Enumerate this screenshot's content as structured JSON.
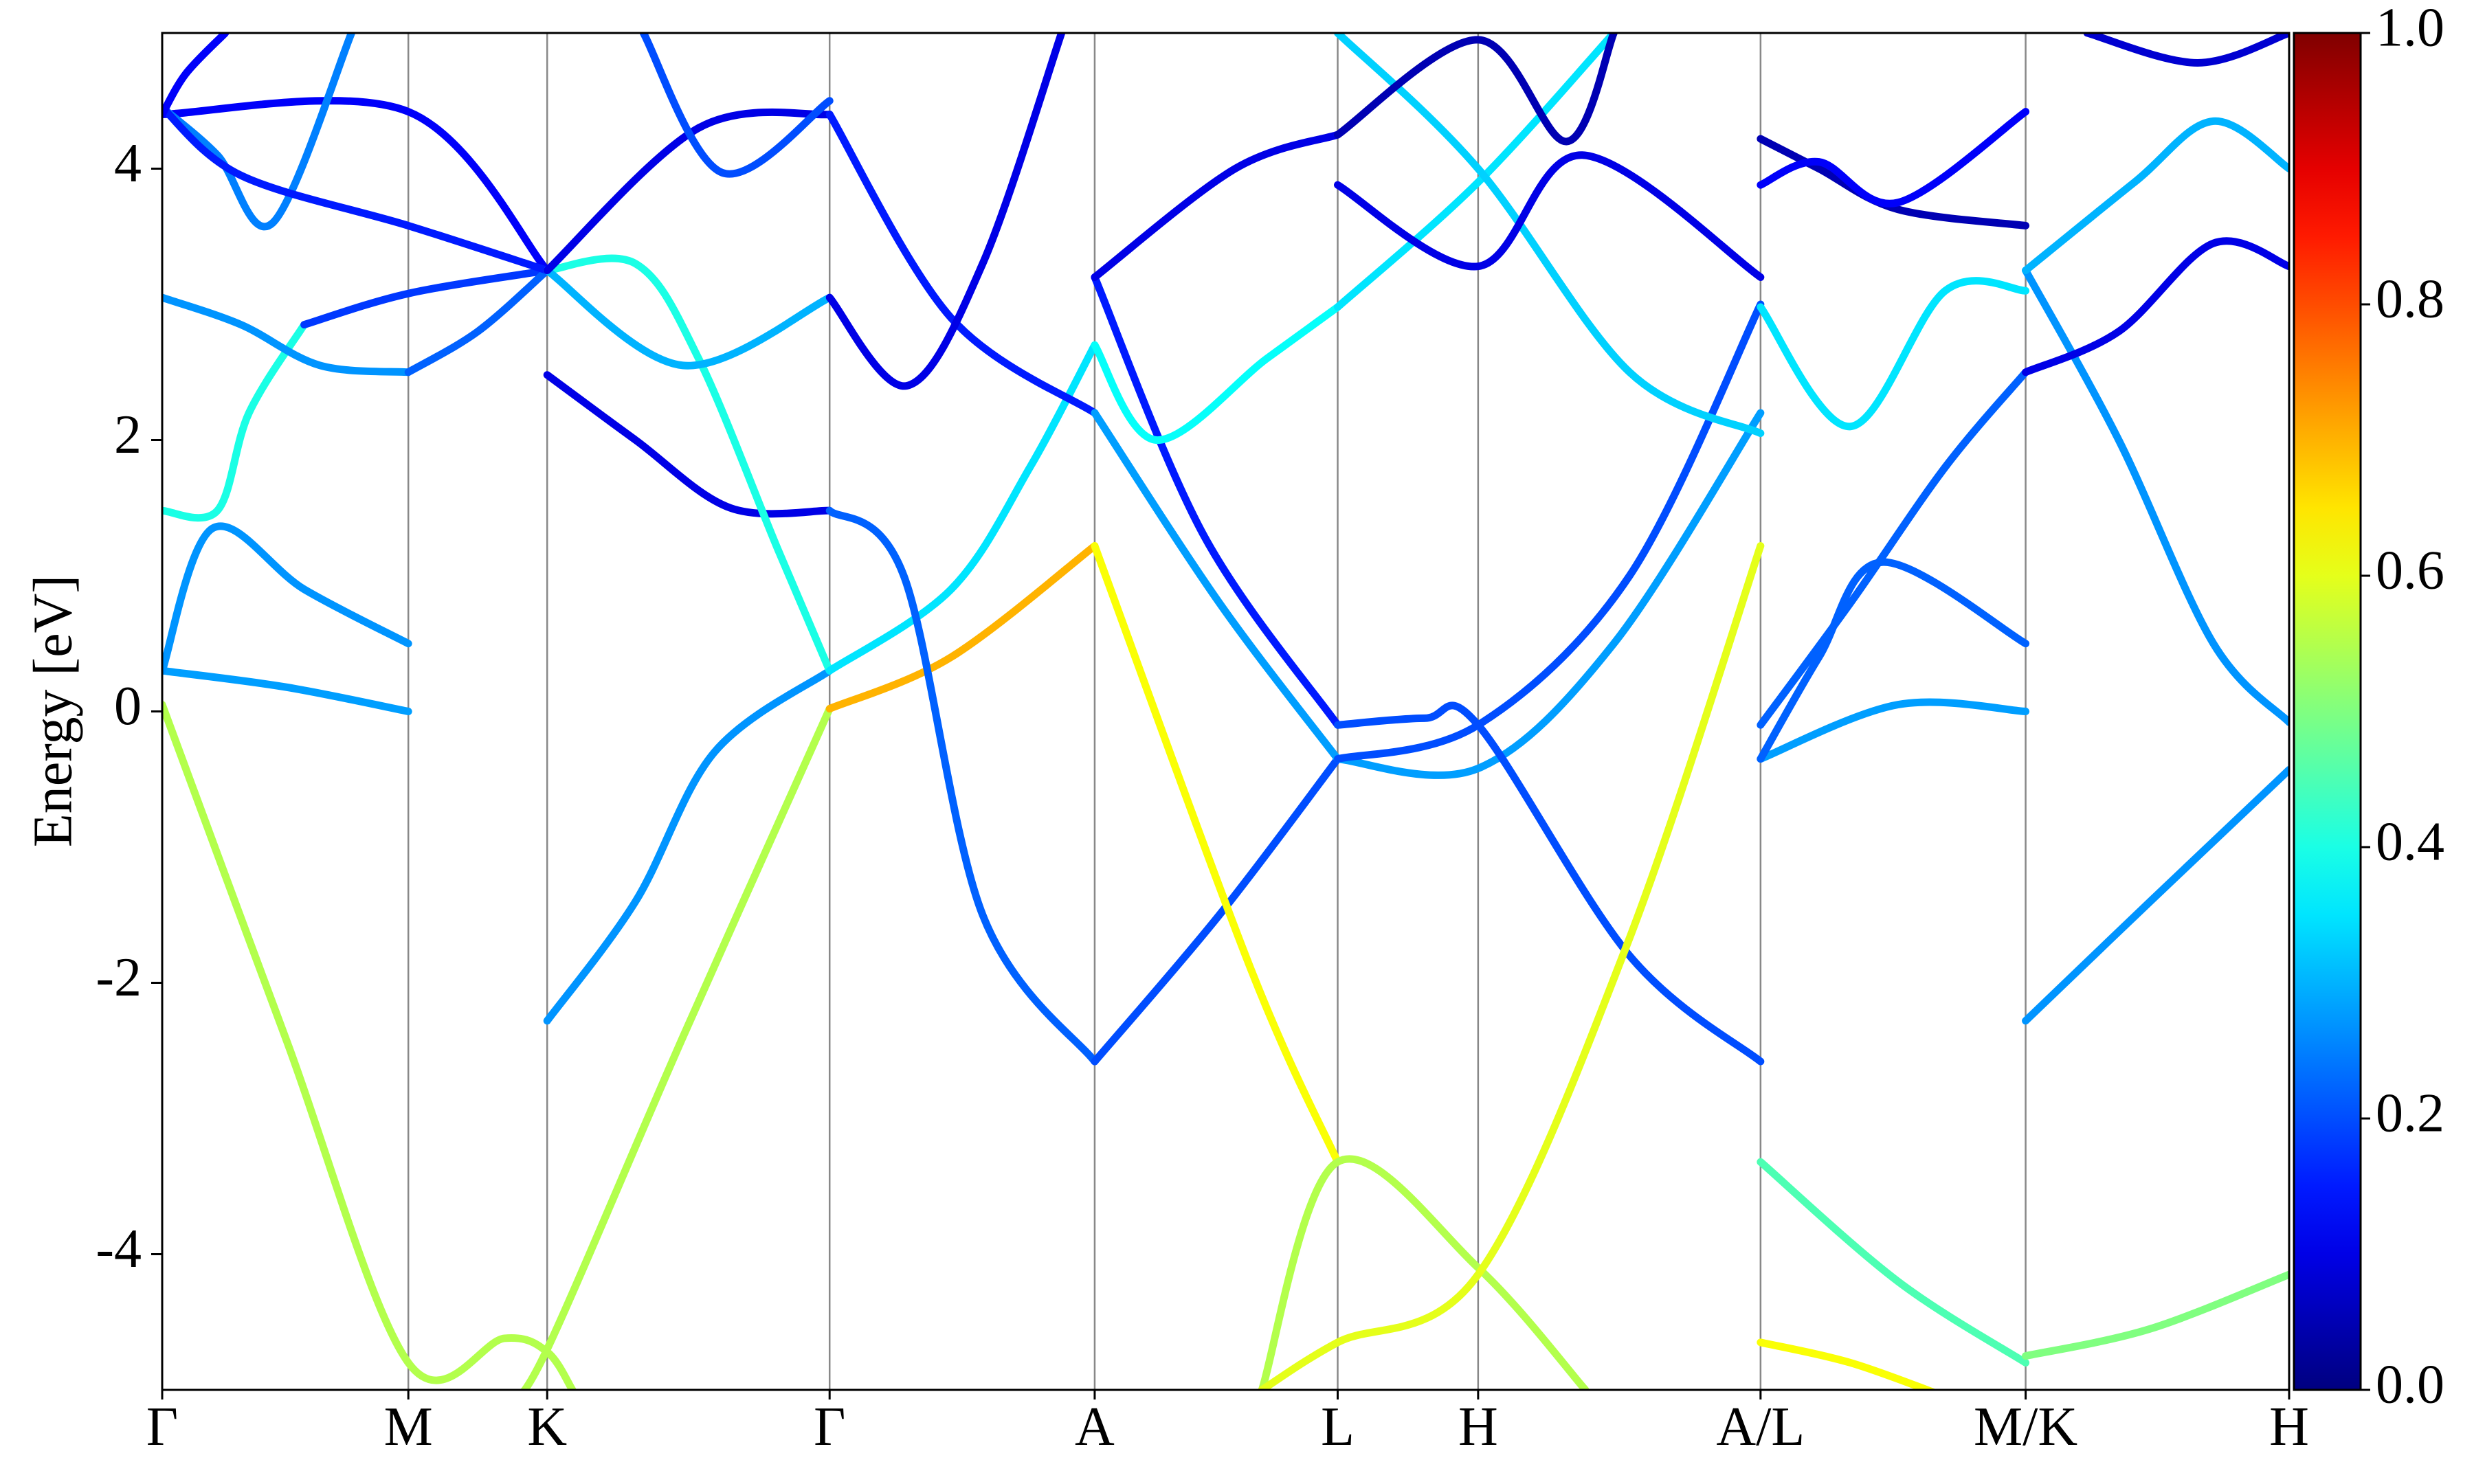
{
  "chart_data": {
    "type": "line",
    "y_label": "Energy [eV]",
    "xlim": [
      0,
      13.48
    ],
    "xticks": [
      {
        "value": 0,
        "label": "Γ"
      },
      {
        "value": 1.56,
        "label": "M"
      },
      {
        "value": 2.44,
        "label": "K"
      },
      {
        "value": 4.23,
        "label": "Γ"
      },
      {
        "value": 5.91,
        "label": "A"
      },
      {
        "value": 7.45,
        "label": "L"
      },
      {
        "value": 8.34,
        "label": "H"
      },
      {
        "value": 10.13,
        "label": "A/L"
      },
      {
        "value": 11.81,
        "label": "M/K"
      },
      {
        "value": 13.48,
        "label": "H"
      }
    ],
    "ylim": [
      -5,
      5
    ],
    "yticks": [
      -4,
      -2,
      0,
      2,
      4
    ],
    "colormap": "jet",
    "clim": [
      0,
      1
    ],
    "cticks": [
      {
        "value": 0,
        "label": "0.0"
      },
      {
        "value": 0.2,
        "label": "0.2"
      },
      {
        "value": 0.4,
        "label": "0.4"
      },
      {
        "value": 0.6,
        "label": "0.6"
      },
      {
        "value": 0.8,
        "label": "0.8"
      },
      {
        "value": 1,
        "label": "1.0"
      }
    ],
    "series": [
      {
        "weight": 0.28,
        "x": [
          0,
          0.78,
          1.56
        ],
        "values": [
          0.3,
          0.18,
          0.0
        ]
      },
      {
        "weight": 0.27,
        "x": [
          0,
          0.32,
          0.9,
          1.56
        ],
        "values": [
          0.3,
          1.35,
          0.9,
          0.5
        ]
      },
      {
        "weight": 0.4,
        "x": [
          0,
          0.35,
          0.55,
          0.9
        ],
        "values": [
          1.48,
          1.48,
          2.2,
          2.85
        ]
      },
      {
        "weight": 0.18,
        "x": [
          0.9,
          1.56,
          2.44
        ],
        "values": [
          2.85,
          3.08,
          3.25
        ]
      },
      {
        "weight": 0.27,
        "x": [
          0,
          0.5,
          1.0,
          1.56
        ],
        "values": [
          3.05,
          2.85,
          2.55,
          2.5
        ]
      },
      {
        "weight": 0.22,
        "x": [
          1.56,
          2.0,
          2.44
        ],
        "values": [
          2.5,
          2.8,
          3.25
        ]
      },
      {
        "weight": 0.12,
        "x": [
          0,
          1.56,
          2.44
        ],
        "values": [
          4.4,
          4.42,
          3.25
        ]
      },
      {
        "weight": 0.25,
        "x": [
          0,
          0.35,
          0.7,
          1.2
        ],
        "values": [
          4.45,
          4.1,
          3.6,
          5.0
        ]
      },
      {
        "weight": 0.15,
        "x": [
          0,
          0.5,
          1.56,
          2.44
        ],
        "values": [
          4.45,
          3.95,
          3.58,
          3.25
        ]
      },
      {
        "weight": 0.12,
        "x": [
          0,
          0.15,
          0.4
        ],
        "values": [
          4.4,
          4.7,
          5.0
        ]
      },
      {
        "weight": 0.55,
        "x": [
          0,
          0.78,
          1.56,
          2.17,
          2.44,
          2.6
        ],
        "values": [
          0.05,
          -2.4,
          -4.8,
          -4.62,
          -4.72,
          -5.0
        ]
      },
      {
        "weight": 0.55,
        "x": [
          2.2,
          2.44,
          3.3,
          4.23
        ],
        "values": [
          -5.1,
          -4.7,
          -2.4,
          0.02
        ]
      },
      {
        "weight": 0.27,
        "x": [
          2.44,
          3.0,
          3.5,
          4.23
        ],
        "values": [
          -2.28,
          -1.4,
          -0.3,
          0.3
        ]
      },
      {
        "weight": 0.1,
        "x": [
          2.44,
          3.0,
          3.6,
          4.23
        ],
        "values": [
          2.48,
          2.0,
          1.5,
          1.48
        ]
      },
      {
        "weight": 0.4,
        "x": [
          2.44,
          3.0,
          3.4,
          3.9,
          4.23
        ],
        "values": [
          3.25,
          3.3,
          2.6,
          1.2,
          0.3
        ]
      },
      {
        "weight": 0.3,
        "x": [
          2.44,
          3.3,
          4.23
        ],
        "values": [
          3.25,
          2.55,
          3.05
        ]
      },
      {
        "weight": 0.1,
        "x": [
          2.44,
          3.4,
          4.23
        ],
        "values": [
          3.25,
          4.3,
          4.4
        ]
      },
      {
        "weight": 0.2,
        "x": [
          3.05,
          3.55,
          4.23
        ],
        "values": [
          5.0,
          3.97,
          4.5
        ]
      },
      {
        "weight": 0.7,
        "x": [
          4.23,
          5.0,
          5.91
        ],
        "values": [
          0.02,
          0.4,
          1.22
        ]
      },
      {
        "weight": 0.35,
        "x": [
          4.23,
          5.0,
          5.5,
          5.91
        ],
        "values": [
          0.3,
          0.9,
          1.8,
          2.7
        ]
      },
      {
        "weight": 0.15,
        "x": [
          4.23,
          5.0,
          5.91
        ],
        "values": [
          4.4,
          2.9,
          2.2
        ]
      },
      {
        "weight": 0.22,
        "x": [
          4.23,
          4.7,
          5.2,
          5.91
        ],
        "values": [
          1.48,
          1.0,
          -1.5,
          -2.58
        ]
      },
      {
        "weight": 0.1,
        "x": [
          4.23,
          4.72,
          5.2,
          5.7
        ],
        "values": [
          3.05,
          2.4,
          3.3,
          5.0
        ]
      },
      {
        "weight": 0.2,
        "x": [
          5.91,
          6.7,
          7.45
        ],
        "values": [
          -2.58,
          -1.5,
          -0.35
        ]
      },
      {
        "weight": 0.28,
        "x": [
          5.91,
          6.7,
          7.45
        ],
        "values": [
          2.2,
          0.8,
          -0.35
        ]
      },
      {
        "weight": 0.15,
        "x": [
          5.91,
          6.6,
          7.45
        ],
        "values": [
          3.2,
          1.3,
          -0.1
        ]
      },
      {
        "weight": 0.62,
        "x": [
          5.91,
          6.9,
          7.45
        ],
        "values": [
          1.22,
          -1.9,
          -3.32
        ]
      },
      {
        "weight": 0.38,
        "x": [
          5.91,
          6.3,
          7.0,
          7.45
        ],
        "values": [
          2.7,
          2.0,
          2.6,
          2.98
        ]
      },
      {
        "weight": 0.1,
        "x": [
          5.91,
          6.8,
          7.45
        ],
        "values": [
          3.2,
          4.0,
          4.25
        ]
      },
      {
        "weight": 0.28,
        "x": [
          7.45,
          8.34,
          9.2,
          10.13
        ],
        "values": [
          -0.35,
          -0.42,
          0.5,
          2.2
        ]
      },
      {
        "weight": 0.2,
        "x": [
          7.45,
          8.0,
          8.34,
          9.3,
          10.13
        ],
        "values": [
          -0.1,
          -0.05,
          -0.1,
          -1.8,
          -2.58
        ]
      },
      {
        "weight": 0.2,
        "x": [
          7.45,
          8.34,
          9.3,
          10.13
        ],
        "values": [
          -0.35,
          -0.1,
          1.0,
          3.0
        ]
      },
      {
        "weight": 0.55,
        "x": [
          6.97,
          7.45,
          8.34,
          9.02
        ],
        "values": [
          -5.0,
          -3.32,
          -4.1,
          -5.0
        ]
      },
      {
        "weight": 0.6,
        "x": [
          6.97,
          7.45,
          8.34,
          9.29,
          10.13
        ],
        "values": [
          -5.0,
          -4.65,
          -4.15,
          -1.7,
          1.22
        ]
      },
      {
        "weight": 0.35,
        "x": [
          7.45,
          8.34,
          9.2
        ],
        "values": [
          2.98,
          3.9,
          5.0
        ]
      },
      {
        "weight": 0.33,
        "x": [
          7.45,
          8.34,
          9.3,
          10.13
        ],
        "values": [
          5.0,
          4.0,
          2.5,
          2.05
        ]
      },
      {
        "weight": 0.1,
        "x": [
          7.45,
          8.34,
          9.0,
          10.13
        ],
        "values": [
          3.88,
          3.28,
          4.1,
          3.2
        ]
      },
      {
        "weight": 0.05,
        "x": [
          7.45,
          8.34,
          8.9,
          9.2
        ],
        "values": [
          4.25,
          4.95,
          4.2,
          5.0
        ]
      },
      {
        "weight": 0.28,
        "x": [
          10.13,
          11.0,
          11.81
        ],
        "values": [
          -0.35,
          0.05,
          0.0
        ]
      },
      {
        "weight": 0.22,
        "x": [
          10.13,
          10.7,
          11.3,
          11.81
        ],
        "values": [
          -0.1,
          0.8,
          1.8,
          2.5
        ]
      },
      {
        "weight": 0.22,
        "x": [
          10.13,
          10.5,
          10.9,
          11.81
        ],
        "values": [
          -0.35,
          0.4,
          1.1,
          0.5
        ]
      },
      {
        "weight": 0.35,
        "x": [
          10.13,
          10.7,
          11.3,
          11.81
        ],
        "values": [
          2.98,
          2.1,
          3.1,
          3.1
        ]
      },
      {
        "weight": 0.05,
        "x": [
          10.13,
          10.5,
          11.0,
          11.81
        ],
        "values": [
          4.22,
          4.0,
          3.7,
          3.58
        ]
      },
      {
        "weight": 0.12,
        "x": [
          10.13,
          10.5,
          11.0,
          11.81
        ],
        "values": [
          3.88,
          4.05,
          3.75,
          4.42
        ]
      },
      {
        "weight": 0.45,
        "x": [
          10.13,
          11.0,
          11.81
        ],
        "values": [
          -3.32,
          -4.2,
          -4.8
        ]
      },
      {
        "weight": 0.62,
        "x": [
          10.13,
          10.7,
          11.3
        ],
        "values": [
          -4.65,
          -4.8,
          -5.05
        ]
      },
      {
        "weight": 0.27,
        "x": [
          11.81,
          12.6,
          13.48
        ],
        "values": [
          -2.28,
          -1.4,
          -0.43
        ]
      },
      {
        "weight": 0.5,
        "x": [
          11.81,
          12.6,
          13.48
        ],
        "values": [
          -4.75,
          -4.55,
          -4.15
        ]
      },
      {
        "weight": 0.27,
        "x": [
          11.81,
          12.4,
          13.0,
          13.48
        ],
        "values": [
          3.25,
          2.0,
          0.5,
          -0.08
        ]
      },
      {
        "weight": 0.1,
        "x": [
          11.81,
          12.4,
          13.0,
          13.48
        ],
        "values": [
          2.5,
          2.8,
          3.45,
          3.28
        ]
      },
      {
        "weight": 0.3,
        "x": [
          11.81,
          12.5,
          13.0,
          13.48
        ],
        "values": [
          3.25,
          3.9,
          4.35,
          4.0
        ]
      },
      {
        "weight": 0.08,
        "x": [
          12.2,
          12.9,
          13.48
        ],
        "values": [
          5.0,
          4.78,
          5.0
        ]
      }
    ]
  }
}
